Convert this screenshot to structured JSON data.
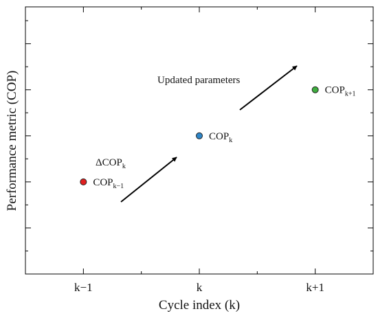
{
  "chart_data": {
    "type": "scatter",
    "title": "",
    "xlabel": "Cycle index (k)",
    "ylabel": "Performance metric (COP)",
    "x_ticks": [
      "k−1",
      "k",
      "k+1"
    ],
    "xlim": [
      -0.5,
      2.5
    ],
    "ylim": [
      -1.0,
      4.8
    ],
    "grid": false,
    "points": [
      {
        "x": 0,
        "y": 1,
        "label_base": "COP",
        "label_sub": "k−1",
        "color": "#e02020"
      },
      {
        "x": 1,
        "y": 2,
        "label_base": "COP",
        "label_sub": "k",
        "color": "#2e86c8"
      },
      {
        "x": 2,
        "y": 3,
        "label_base": "COP",
        "label_sub": "k+1",
        "color": "#3fae3f"
      }
    ],
    "annotations": [
      {
        "text_base": "ΔCOP",
        "text_sub": "k"
      },
      {
        "text": "Updated parameters"
      }
    ]
  }
}
